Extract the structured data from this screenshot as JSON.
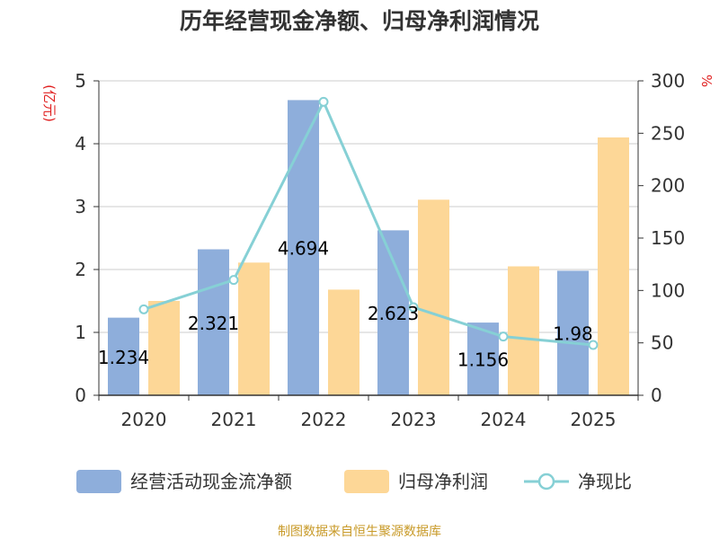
{
  "chart_data": {
    "type": "bar",
    "title": "历年经营现金净额、归母净利润情况",
    "categories": [
      "2020",
      "2021",
      "2022",
      "2023",
      "2024",
      "2025"
    ],
    "series": [
      {
        "name": "经营活动现金流净额",
        "type": "bar",
        "axis": "left",
        "color": "#8eaedb",
        "values": [
          1.234,
          2.321,
          4.694,
          2.623,
          1.156,
          1.98
        ],
        "labels": [
          "1.234",
          "2.321",
          "4.694",
          "2.623",
          "1.156",
          "1.98"
        ]
      },
      {
        "name": "归母净利润",
        "type": "bar",
        "axis": "left",
        "color": "#fdd797",
        "values": [
          1.5,
          2.11,
          1.68,
          3.11,
          2.05,
          4.1
        ]
      },
      {
        "name": "净现比",
        "type": "line",
        "axis": "right",
        "color": "#86d0d5",
        "values": [
          82,
          110,
          280,
          84,
          56,
          48
        ]
      }
    ],
    "y_left": {
      "unit": "(亿元)",
      "min": 0,
      "max": 5,
      "ticks": [
        "0",
        "1",
        "2",
        "3",
        "4",
        "5"
      ]
    },
    "y_right": {
      "unit": "%",
      "min": 0,
      "max": 300,
      "ticks": [
        "0",
        "50",
        "100",
        "150",
        "200",
        "250",
        "300"
      ]
    },
    "grid": true,
    "legend_position": "bottom",
    "source_note": "制图数据来自恒生聚源数据库"
  }
}
